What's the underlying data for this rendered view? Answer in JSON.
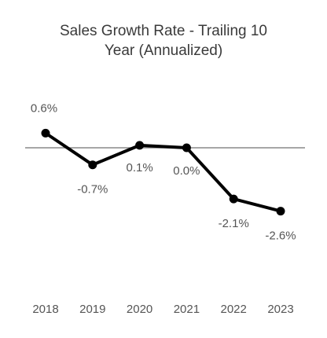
{
  "chart_data": {
    "type": "line",
    "title_lines": [
      "Sales Growth Rate - Trailing 10",
      "Year (Annualized)"
    ],
    "categories": [
      "2018",
      "2019",
      "2020",
      "2021",
      "2022",
      "2023"
    ],
    "series": [
      {
        "values": [
          0.6,
          -0.7,
          0.1,
          0.0,
          -2.1,
          -2.6
        ],
        "labels": [
          "0.6%",
          "-0.7%",
          "0.1%",
          "0.0%",
          "-2.1%",
          "-2.6%"
        ]
      }
    ],
    "ylim": [
      -3.5,
      1.0
    ],
    "reference_line": 0,
    "line_color": "#000000",
    "reference_color": "#888888",
    "grid": false,
    "legend": "none"
  }
}
